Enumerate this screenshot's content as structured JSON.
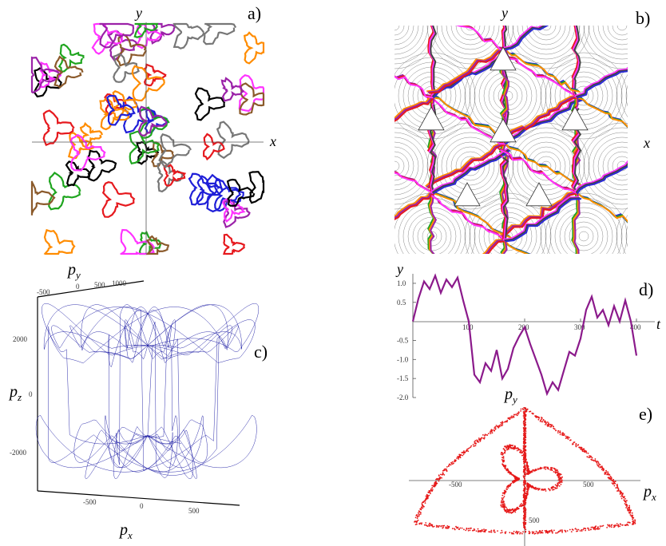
{
  "panels": {
    "a": {
      "label": "a)",
      "x_axis": "x",
      "y_axis": "y"
    },
    "b": {
      "label": "b)",
      "x_axis": "x",
      "y_axis": "y"
    },
    "c": {
      "label": "c)",
      "x_axis": "p",
      "x_sub": "x",
      "y_axis": "p",
      "y_sub": "y",
      "z_axis": "p",
      "z_sub": "z"
    },
    "d": {
      "label": "d)",
      "x_axis": "t",
      "y_axis": "y"
    },
    "e": {
      "label": "e)",
      "x_axis": "p",
      "x_sub": "x",
      "y_axis": "p",
      "y_sub": "y"
    }
  },
  "colors": {
    "a_paths": [
      "#000000",
      "#e6191e",
      "#9b22a8",
      "#ff33ff",
      "#1f1fd8",
      "#ff8c00",
      "#1fa51f",
      "#8b5a2b",
      "#777777"
    ],
    "b_circles": "#888888",
    "b_lines": [
      "#2b2bd6",
      "#22a322",
      "#ff8c00",
      "#9b22a8",
      "#e6191e",
      "#ff33ff",
      "#444444"
    ],
    "c_trajectory": "#1a1aa3",
    "d_series": "#8b1a8b",
    "e_points": "#e61919"
  },
  "chart_data": [
    {
      "panel": "a",
      "type": "scatter",
      "description_note": "",
      "xlabel": "x",
      "ylabel": "y"
    },
    {
      "panel": "b",
      "type": "scatter",
      "xlabel": "x",
      "ylabel": "y"
    },
    {
      "panel": "c",
      "type": "line",
      "xlabel": "p_x",
      "ylabel": "p_z",
      "zlabel": "p_y",
      "x_ticks": [
        "-500",
        "0",
        "500"
      ],
      "z_ticks": [
        "2000",
        "0",
        "-2000"
      ],
      "y_ticks": [
        "-500",
        "0",
        "500",
        "1000"
      ]
    },
    {
      "panel": "d",
      "type": "line",
      "xlabel": "t",
      "ylabel": "y",
      "xlim": [
        0,
        400
      ],
      "ylim": [
        -2.0,
        1.25
      ],
      "x_ticks": [
        "100",
        "200",
        "300",
        "400"
      ],
      "y_ticks": [
        "1.0",
        "0.5",
        "-0.5",
        "-1.0",
        "-1.5",
        "-2.0"
      ],
      "x": [
        0,
        10,
        20,
        30,
        40,
        50,
        60,
        70,
        80,
        90,
        100,
        110,
        120,
        130,
        140,
        150,
        160,
        170,
        180,
        190,
        200,
        210,
        220,
        230,
        240,
        250,
        260,
        270,
        280,
        290,
        300,
        310,
        320,
        330,
        340,
        350,
        360,
        370,
        380,
        390,
        400
      ],
      "y": [
        0.0,
        0.6,
        1.05,
        0.85,
        1.2,
        0.75,
        1.1,
        0.9,
        1.15,
        0.55,
        0.0,
        -1.4,
        -1.6,
        -1.1,
        -1.3,
        -0.75,
        -1.5,
        -1.25,
        -0.7,
        -0.4,
        -0.15,
        -0.6,
        -1.0,
        -1.4,
        -1.9,
        -1.6,
        -1.8,
        -1.3,
        -0.8,
        -0.9,
        -0.45,
        0.3,
        0.65,
        0.1,
        0.3,
        -0.1,
        0.4,
        0.0,
        0.55,
        0.0,
        -0.9
      ]
    },
    {
      "panel": "e",
      "type": "scatter",
      "xlabel": "p_x",
      "ylabel": "p_y",
      "x_ticks": [
        "-500",
        "500"
      ],
      "y_ticks": [
        "500"
      ]
    }
  ]
}
